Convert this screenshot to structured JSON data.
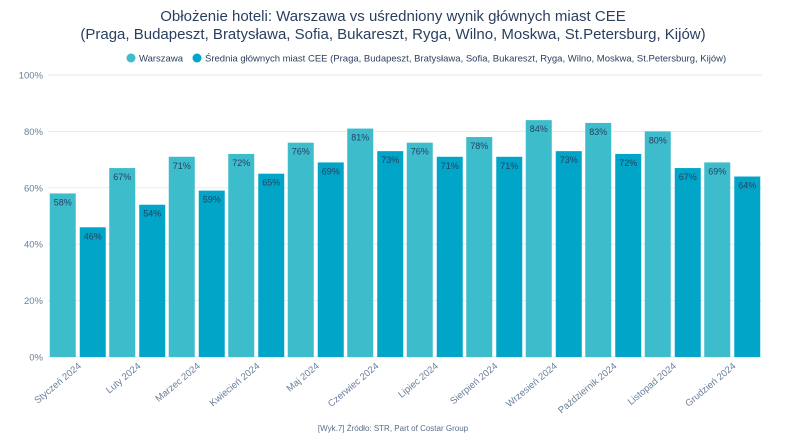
{
  "chart_data": {
    "type": "bar",
    "title_line1": "Obłożenie hoteli: Warszawa vs uśredniony wynik głównych miast CEE",
    "title_line2": "(Praga, Budapeszt, Bratysława, Sofia, Bukareszt, Ryga, Wilno, Moskwa, St.Petersburg, Kijów)",
    "categories": [
      "Styczeń 2024",
      "Luty 2024",
      "Marzec 2024",
      "Kwiecień 2024",
      "Maj 2024",
      "Czerwiec 2024",
      "Lipiec 2024",
      "Sierpień 2024",
      "Wrzesień 2024",
      "Październik 2024",
      "Listopad 2024",
      "Grudzień 2024"
    ],
    "series": [
      {
        "name": "Warszawa",
        "color": "#3dbccc",
        "values": [
          58,
          67,
          71,
          72,
          76,
          81,
          76,
          78,
          84,
          83,
          80,
          69
        ]
      },
      {
        "name": "Średnia głównych miast CEE (Praga, Budapeszt, Bratysława, Sofia, Bukareszt, Ryga, Wilno, Moskwa, St.Petersburg, Kijów)",
        "color": "#00a5c8",
        "values": [
          46,
          54,
          59,
          65,
          69,
          73,
          71,
          71,
          73,
          72,
          67,
          64
        ]
      }
    ],
    "ylim": [
      0,
      100
    ],
    "yticks": [
      0,
      20,
      40,
      60,
      80,
      100
    ],
    "ytick_labels": [
      "0%",
      "20%",
      "40%",
      "60%",
      "80%",
      "100%"
    ],
    "value_suffix": "%",
    "grid": true,
    "legend": "top"
  },
  "source": "[Wyk.7] Źródło: STR, Part of Costar Group"
}
